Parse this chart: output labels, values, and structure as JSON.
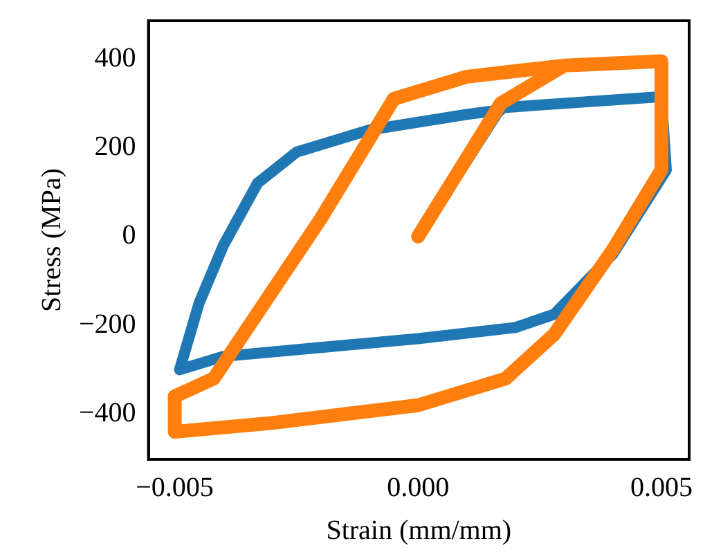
{
  "chart_data": {
    "type": "line",
    "xlabel": "Strain (mm/mm)",
    "ylabel": "Stress (MPa)",
    "xlim": [
      -0.00554,
      0.00557
    ],
    "ylim": [
      -502,
      486
    ],
    "xticks": [
      {
        "value": -0.005,
        "label": "−0.005"
      },
      {
        "value": 0,
        "label": "0.000"
      },
      {
        "value": 0.005,
        "label": "0.005"
      }
    ],
    "yticks": [
      {
        "value": -400,
        "label": "−400"
      },
      {
        "value": -200,
        "label": "−200"
      },
      0,
      200,
      400
    ],
    "grid": false,
    "legend": false,
    "marker": "none",
    "line_style": "solid",
    "series": [
      {
        "color": "#1f77b4",
        "x": [
          0,
          0.0017,
          0.003,
          0.005,
          0.0051,
          0.004,
          0.0028,
          0.002,
          0,
          -0.002,
          -0.004,
          -0.0049,
          -0.0045,
          -0.004,
          -0.0033,
          -0.0025,
          -0.001,
          0.001,
          0.0017
        ],
        "values": [
          0,
          290,
          300,
          315,
          150,
          -40,
          -175,
          -205,
          -230,
          -250,
          -270,
          -300,
          -150,
          -20,
          120,
          190,
          240,
          275,
          285
        ]
      },
      {
        "color": "#ff7f0e",
        "x": [
          0,
          0.0017,
          0.003,
          0.005,
          0.005,
          0.004,
          0.0028,
          0.0018,
          0,
          -0.003,
          -0.005,
          -0.005,
          -0.0042,
          -0.002,
          -0.0005,
          0.001,
          0.003,
          0.005
        ],
        "values": [
          0,
          300,
          385,
          395,
          150,
          -30,
          -220,
          -320,
          -380,
          -420,
          -440,
          -360,
          -320,
          40,
          310,
          360,
          385,
          395
        ]
      }
    ]
  }
}
